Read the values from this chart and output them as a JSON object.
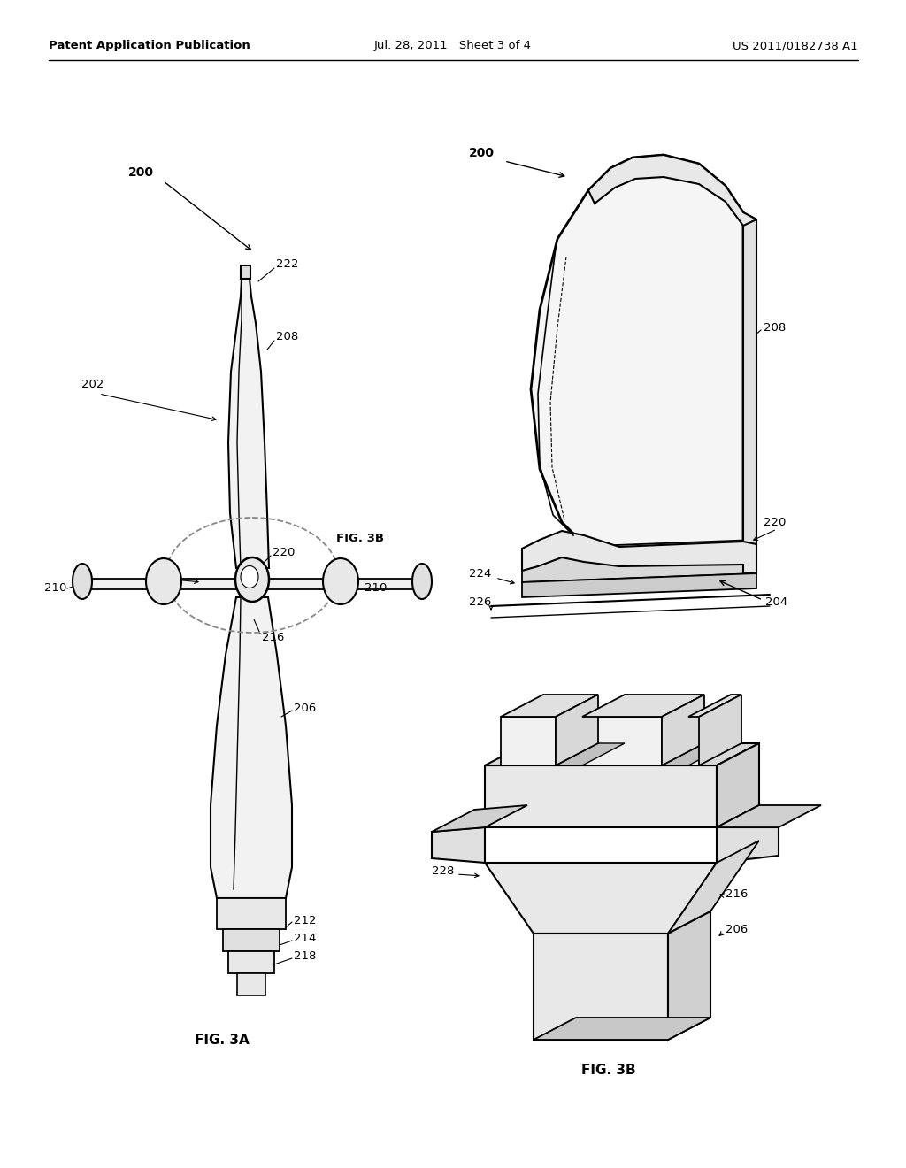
{
  "background_color": "#ffffff",
  "header_left": "Patent Application Publication",
  "header_center": "Jul. 28, 2011  Sheet 3 of 4",
  "header_right": "US 2011/0182738 A1",
  "line_color": "#000000",
  "dashed_color": "#888888",
  "text_color": "#000000",
  "fig3a_caption": "FIG. 3A",
  "fig3b_caption": "FIG. 3B",
  "fig3b_ref": "FIG. 3B"
}
